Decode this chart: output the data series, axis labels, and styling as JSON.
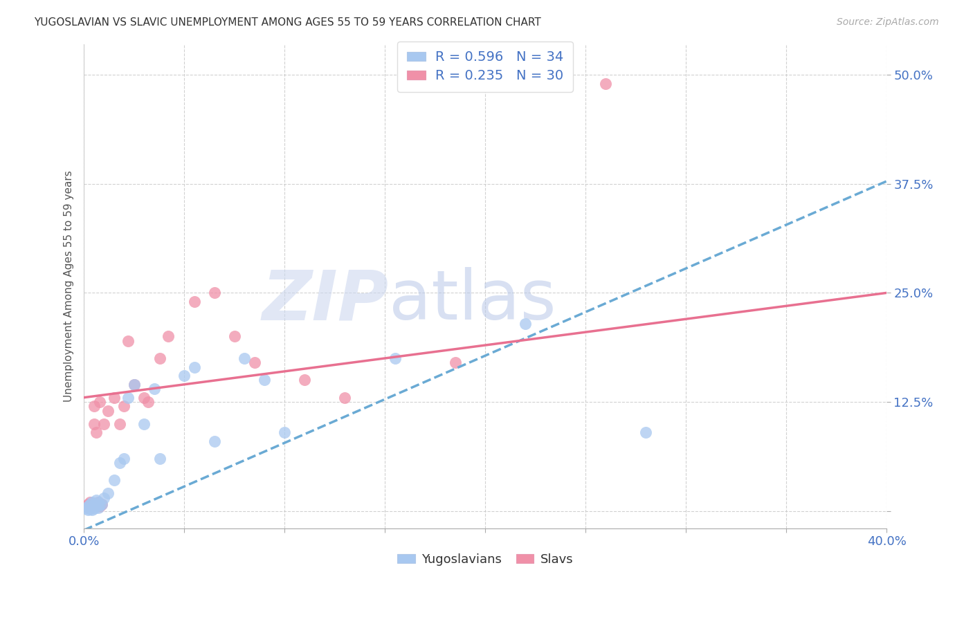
{
  "title": "YUGOSLAVIAN VS SLAVIC UNEMPLOYMENT AMONG AGES 55 TO 59 YEARS CORRELATION CHART",
  "source": "Source: ZipAtlas.com",
  "ylabel": "Unemployment Among Ages 55 to 59 years",
  "xlim": [
    0.0,
    0.4
  ],
  "ylim": [
    -0.02,
    0.535
  ],
  "xticks": [
    0.0,
    0.05,
    0.1,
    0.15,
    0.2,
    0.25,
    0.3,
    0.35,
    0.4
  ],
  "xticklabels": [
    "0.0%",
    "",
    "",
    "",
    "",
    "",
    "",
    "",
    "40.0%"
  ],
  "ytick_positions": [
    0.0,
    0.125,
    0.25,
    0.375,
    0.5
  ],
  "ytick_labels": [
    "",
    "12.5%",
    "25.0%",
    "37.5%",
    "50.0%"
  ],
  "grid_color": "#cccccc",
  "background_color": "#ffffff",
  "yugoslavians_color": "#a8c8f0",
  "slavs_color": "#f090a8",
  "text_blue": "#4472c4",
  "yugoslavians_R": 0.596,
  "yugoslavians_N": 34,
  "slavs_R": 0.235,
  "slavs_N": 30,
  "watermark_color": "#cdd8ef",
  "yugo_line_x": [
    0.0,
    0.4
  ],
  "yugo_line_y": [
    -0.022,
    0.378
  ],
  "slavs_line_x": [
    0.0,
    0.4
  ],
  "slavs_line_y": [
    0.13,
    0.25
  ],
  "yugoslavians_x": [
    0.001,
    0.002,
    0.002,
    0.003,
    0.003,
    0.004,
    0.004,
    0.005,
    0.005,
    0.006,
    0.006,
    0.007,
    0.007,
    0.008,
    0.009,
    0.01,
    0.012,
    0.015,
    0.018,
    0.02,
    0.022,
    0.025,
    0.03,
    0.035,
    0.038,
    0.05,
    0.055,
    0.065,
    0.08,
    0.09,
    0.1,
    0.155,
    0.22,
    0.28
  ],
  "yugoslavians_y": [
    0.003,
    0.001,
    0.005,
    0.002,
    0.008,
    0.001,
    0.01,
    0.003,
    0.008,
    0.005,
    0.012,
    0.004,
    0.01,
    0.007,
    0.008,
    0.015,
    0.02,
    0.035,
    0.055,
    0.06,
    0.13,
    0.145,
    0.1,
    0.14,
    0.06,
    0.155,
    0.165,
    0.08,
    0.175,
    0.15,
    0.09,
    0.175,
    0.215,
    0.09
  ],
  "slavs_x": [
    0.001,
    0.002,
    0.003,
    0.004,
    0.005,
    0.005,
    0.006,
    0.007,
    0.008,
    0.008,
    0.009,
    0.01,
    0.012,
    0.015,
    0.018,
    0.02,
    0.022,
    0.025,
    0.03,
    0.032,
    0.038,
    0.042,
    0.055,
    0.065,
    0.075,
    0.085,
    0.11,
    0.13,
    0.185,
    0.26
  ],
  "slavs_y": [
    0.005,
    0.008,
    0.01,
    0.005,
    0.1,
    0.12,
    0.09,
    0.01,
    0.005,
    0.125,
    0.008,
    0.1,
    0.115,
    0.13,
    0.1,
    0.12,
    0.195,
    0.145,
    0.13,
    0.125,
    0.175,
    0.2,
    0.24,
    0.25,
    0.2,
    0.17,
    0.15,
    0.13,
    0.17,
    0.49
  ]
}
